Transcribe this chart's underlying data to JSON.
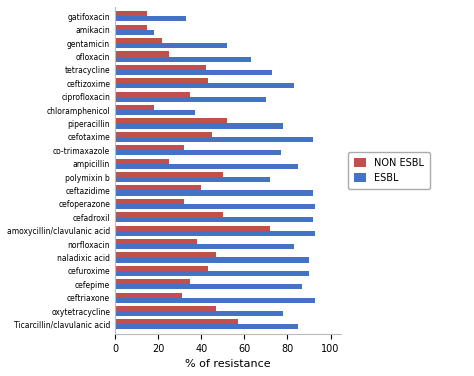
{
  "antibiotics": [
    "gatifoxacin",
    "amikacin",
    "gentamicin",
    "ofloxacin",
    "tetracycline",
    "ceftizoxime",
    "ciprofloxacin",
    "chloramphenicol",
    "piperacillin",
    "cefotaxime",
    "co-trimaxazole",
    "ampicillin",
    "polymixin b",
    "ceftazidime",
    "cefoperazone",
    "cefadroxil",
    "amoxycillin/clavulanic acid",
    "norfloxacin",
    "naladixic acid",
    "cefuroxime",
    "cefepime",
    "ceftriaxone",
    "oxytetracycline",
    "Ticarcillin/clavulanic acid"
  ],
  "non_esbl": [
    15,
    15,
    22,
    25,
    42,
    43,
    35,
    18,
    52,
    45,
    32,
    25,
    50,
    40,
    32,
    50,
    72,
    38,
    47,
    43,
    35,
    31,
    47,
    57
  ],
  "esbl": [
    33,
    18,
    52,
    63,
    73,
    83,
    70,
    37,
    78,
    92,
    77,
    85,
    72,
    92,
    93,
    92,
    93,
    83,
    90,
    90,
    87,
    93,
    78,
    85
  ],
  "non_esbl_color": "#c0504d",
  "esbl_color": "#4472c4",
  "xlabel": "% of resistance",
  "xlim": [
    0,
    105
  ],
  "xticks": [
    0,
    20,
    40,
    60,
    80,
    100
  ],
  "legend_labels": [
    "NON ESBL",
    "ESBL"
  ],
  "bar_height": 0.38,
  "figsize": [
    4.74,
    3.76
  ],
  "dpi": 100
}
